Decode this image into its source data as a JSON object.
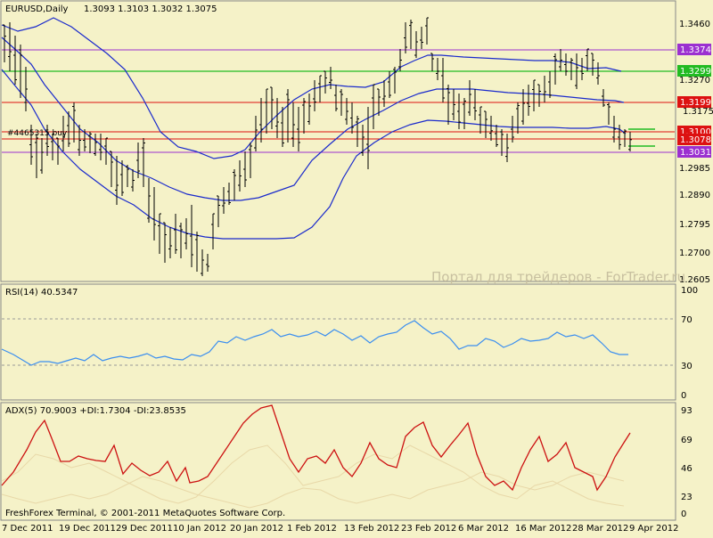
{
  "main_chart": {
    "symbol_label": "EURUSD,Daily",
    "ohlc_label": "1.3093 1.3103 1.3032 1.3075",
    "order_label": "#4465315 buy",
    "watermark": "Портал для трейдеров - ForTrader.ru",
    "y_axis_labels": [
      "1.3460",
      "1.3270",
      "1.3175",
      "1.2985",
      "1.2890",
      "1.2795",
      "1.2700",
      "1.2605"
    ],
    "level_tags": [
      {
        "price": "1.3374",
        "color": "#9b30d0"
      },
      {
        "price": "1.3299",
        "color": "#22bb22"
      },
      {
        "price": "1.3199",
        "color": "#dd1111"
      },
      {
        "price": "1.3100",
        "color": "#dd1111"
      },
      {
        "price": "1.3078",
        "color": "#dd1111"
      },
      {
        "price": "1.3031",
        "color": "#9b30d0"
      }
    ]
  },
  "rsi_panel": {
    "label": "RSI(14) 40.5347",
    "y_axis_labels": [
      "100",
      "70",
      "30",
      "0"
    ]
  },
  "adx_panel": {
    "label": "ADX(5) 70.9003 +DI:1.7304 -DI:23.8535",
    "y_axis_labels": [
      "93",
      "69",
      "46",
      "23",
      "0"
    ]
  },
  "footer": {
    "copyright": "FreshForex Terminal, © 2001-2011 MetaQuotes Software Corp."
  },
  "x_axis_labels": [
    "7 Dec 2011",
    "19 Dec 2011",
    "29 Dec 2011",
    "10 Jan 2012",
    "20 Jan 2012",
    "1 Feb 2012",
    "13 Feb 2012",
    "23 Feb 2012",
    "6 Mar 2012",
    "16 Mar 2012",
    "28 Mar 2012",
    "9 Apr 2012"
  ],
  "colors": {
    "background": "#f5f2c8",
    "price_bars": "#000000",
    "bollinger_bands": "#1a2acc",
    "rsi_line": "#3a8ef0",
    "adx_line": "#cc1111",
    "di_lines": "#e8d8a8",
    "level_purple": "#9b30d0",
    "level_green": "#22bb22",
    "level_red": "#dd1111"
  }
}
